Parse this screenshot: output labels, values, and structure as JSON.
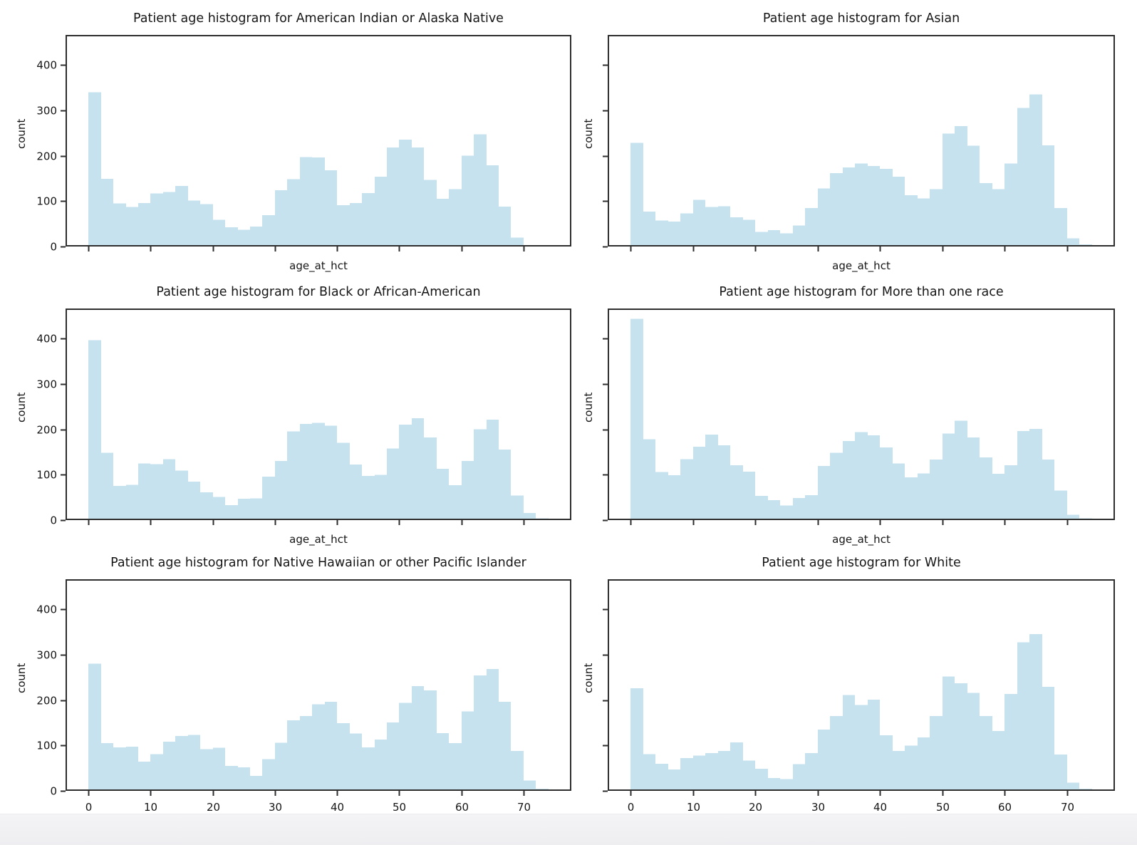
{
  "figure": {
    "description": "Grid of six patient age histograms by race group",
    "ylabel_shared": "count",
    "xlabel_shared": "age_at_hct"
  },
  "colors": {
    "bar_fill": "#c6e2ef",
    "axis": "#2e2e2e",
    "text": "#161616",
    "background": "#ffffff",
    "footer_bg": "#f1f1f3"
  },
  "chart_data": [
    {
      "type": "bar",
      "title": "Patient age histogram for American Indian or Alaska Native",
      "xlabel": "age_at_hct",
      "ylabel": "count",
      "bin_start": 0,
      "bin_width": 2,
      "xlim": [
        -3.7,
        77.7
      ],
      "ylim": [
        0,
        466
      ],
      "x_ticks": [
        0,
        10,
        20,
        30,
        40,
        50,
        60,
        70
      ],
      "y_ticks": [
        0,
        100,
        200,
        300,
        400
      ],
      "show_x_tick_labels": false,
      "show_y_tick_labels": true,
      "values": [
        340,
        149,
        95,
        87,
        96,
        117,
        120,
        133,
        101,
        93,
        59,
        42,
        37,
        44,
        69,
        124,
        148,
        197,
        196,
        168,
        91,
        96,
        118,
        154,
        218,
        235,
        218,
        147,
        105,
        126,
        200,
        247,
        179,
        88,
        20,
        0,
        0
      ]
    },
    {
      "type": "bar",
      "title": "Patient age histogram for Asian",
      "xlabel": "age_at_hct",
      "ylabel": "count",
      "bin_start": 0,
      "bin_width": 2,
      "xlim": [
        -3.7,
        77.7
      ],
      "ylim": [
        0,
        466
      ],
      "x_ticks": [
        0,
        10,
        20,
        30,
        40,
        50,
        60,
        70
      ],
      "y_ticks": [
        0,
        100,
        200,
        300,
        400
      ],
      "show_x_tick_labels": false,
      "show_y_tick_labels": false,
      "values": [
        228,
        77,
        57,
        55,
        73,
        103,
        87,
        89,
        64,
        59,
        32,
        36,
        29,
        46,
        85,
        128,
        162,
        174,
        183,
        177,
        171,
        154,
        113,
        106,
        126,
        249,
        265,
        222,
        140,
        126,
        183,
        305,
        335,
        223,
        85,
        18,
        5
      ]
    },
    {
      "type": "bar",
      "title": "Patient age histogram for Black or African-American",
      "xlabel": "age_at_hct",
      "ylabel": "count",
      "bin_start": 0,
      "bin_width": 2,
      "xlim": [
        -3.7,
        77.7
      ],
      "ylim": [
        0,
        466
      ],
      "x_ticks": [
        0,
        10,
        20,
        30,
        40,
        50,
        60,
        70
      ],
      "y_ticks": [
        0,
        100,
        200,
        300,
        400
      ],
      "show_x_tick_labels": false,
      "show_y_tick_labels": true,
      "values": [
        396,
        148,
        75,
        78,
        125,
        123,
        134,
        109,
        85,
        61,
        51,
        33,
        47,
        48,
        96,
        130,
        195,
        212,
        214,
        208,
        170,
        122,
        97,
        100,
        158,
        210,
        224,
        182,
        113,
        77,
        130,
        200,
        221,
        155,
        54,
        16,
        4
      ]
    },
    {
      "type": "bar",
      "title": "Patient age histogram for More than one race",
      "xlabel": "age_at_hct",
      "ylabel": "count",
      "bin_start": 0,
      "bin_width": 2,
      "xlim": [
        -3.7,
        77.7
      ],
      "ylim": [
        0,
        466
      ],
      "x_ticks": [
        0,
        10,
        20,
        30,
        40,
        50,
        60,
        70
      ],
      "y_ticks": [
        0,
        100,
        200,
        300,
        400
      ],
      "show_x_tick_labels": false,
      "show_y_tick_labels": false,
      "values": [
        443,
        178,
        106,
        99,
        134,
        162,
        188,
        165,
        121,
        107,
        53,
        44,
        32,
        49,
        55,
        119,
        148,
        174,
        194,
        187,
        160,
        125,
        94,
        103,
        133,
        191,
        219,
        182,
        138,
        102,
        121,
        196,
        201,
        133,
        65,
        12,
        4
      ]
    },
    {
      "type": "bar",
      "title": "Patient age histogram for Native Hawaiian or other Pacific Islander",
      "xlabel": "age_at_hct",
      "ylabel": "count",
      "bin_start": 0,
      "bin_width": 2,
      "xlim": [
        -3.7,
        77.7
      ],
      "ylim": [
        0,
        466
      ],
      "x_ticks": [
        0,
        10,
        20,
        30,
        40,
        50,
        60,
        70
      ],
      "y_ticks": [
        0,
        100,
        200,
        300,
        400
      ],
      "show_x_tick_labels": true,
      "show_y_tick_labels": true,
      "values": [
        280,
        105,
        96,
        97,
        64,
        81,
        108,
        121,
        123,
        92,
        95,
        55,
        52,
        33,
        70,
        106,
        155,
        165,
        191,
        196,
        149,
        126,
        96,
        113,
        151,
        194,
        231,
        221,
        127,
        105,
        175,
        254,
        268,
        196,
        88,
        23,
        5
      ]
    },
    {
      "type": "bar",
      "title": "Patient age histogram for White",
      "xlabel": "age_at_hct",
      "ylabel": "count",
      "bin_start": 0,
      "bin_width": 2,
      "xlim": [
        -3.7,
        77.7
      ],
      "ylim": [
        0,
        466
      ],
      "x_ticks": [
        0,
        10,
        20,
        30,
        40,
        50,
        60,
        70
      ],
      "y_ticks": [
        0,
        100,
        200,
        300,
        400
      ],
      "show_x_tick_labels": true,
      "show_y_tick_labels": false,
      "values": [
        226,
        81,
        60,
        47,
        72,
        78,
        83,
        88,
        107,
        67,
        49,
        28,
        26,
        59,
        83,
        135,
        165,
        211,
        189,
        201,
        122,
        88,
        100,
        118,
        165,
        252,
        237,
        216,
        165,
        132,
        213,
        327,
        345,
        229,
        80,
        18,
        5
      ]
    }
  ]
}
